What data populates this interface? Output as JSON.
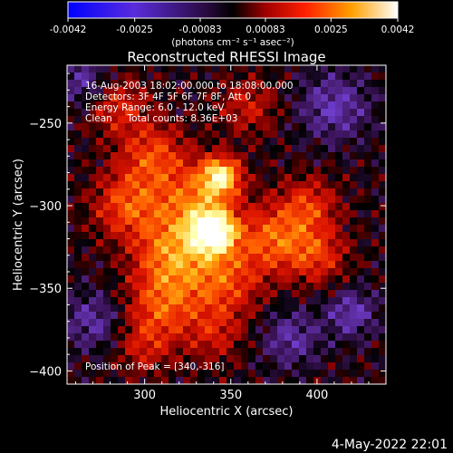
{
  "chart_data": {
    "type": "heatmap",
    "title": "Reconstructed RHESSI Image",
    "xlabel": "Heliocentric X (arcsec)",
    "ylabel": "Heliocentric Y (arcsec)",
    "xlim": [
      255,
      440
    ],
    "ylim": [
      -408,
      -215
    ],
    "x_ticks": [
      300,
      350,
      400
    ],
    "y_ticks": [
      -250,
      -300,
      -350,
      -400
    ],
    "colorbar": {
      "range": [
        -0.0042,
        0.0042
      ],
      "ticks": [
        "-0.0042",
        "-0.0025",
        "-0.00083",
        "0.00083",
        "0.0025",
        "0.0042"
      ],
      "units_label": "(photons cm⁻² s⁻¹ asec⁻²)"
    },
    "annotations": [
      "16-Aug-2003 18:02:00.000 to 18:08:00.000",
      "Detectors: 3F 4F 5F 6F 7F 8F, Att 0",
      "Energy Range: 6.0 - 12.0 keV",
      "Clean     Total counts: 8.36E+03"
    ],
    "peak_label": "Position of Peak = [340,-316]",
    "peak_position": [
      340,
      -316
    ],
    "features": [
      {
        "x": 340,
        "y": -316,
        "sigma": 9,
        "amp": 1.0
      },
      {
        "x": 344,
        "y": -282,
        "sigma": 8,
        "amp": 0.85
      },
      {
        "x": 330,
        "y": -300,
        "sigma": 16,
        "amp": 0.55
      },
      {
        "x": 305,
        "y": -270,
        "sigma": 14,
        "amp": 0.45
      },
      {
        "x": 290,
        "y": -300,
        "sigma": 14,
        "amp": 0.48
      },
      {
        "x": 315,
        "y": -330,
        "sigma": 15,
        "amp": 0.55
      },
      {
        "x": 310,
        "y": -360,
        "sigma": 14,
        "amp": 0.45
      },
      {
        "x": 345,
        "y": -345,
        "sigma": 16,
        "amp": 0.48
      },
      {
        "x": 375,
        "y": -320,
        "sigma": 14,
        "amp": 0.5
      },
      {
        "x": 395,
        "y": -300,
        "sigma": 12,
        "amp": 0.4
      },
      {
        "x": 400,
        "y": -330,
        "sigma": 12,
        "amp": 0.4
      },
      {
        "x": 285,
        "y": -240,
        "sigma": 12,
        "amp": 0.35
      },
      {
        "x": 360,
        "y": -240,
        "sigma": 12,
        "amp": 0.3
      },
      {
        "x": 300,
        "y": -385,
        "sigma": 12,
        "amp": 0.3
      },
      {
        "x": 340,
        "y": -378,
        "sigma": 12,
        "amp": 0.28
      },
      {
        "x": 420,
        "y": -365,
        "sigma": 10,
        "amp": -0.35
      },
      {
        "x": 270,
        "y": -370,
        "sigma": 12,
        "amp": -0.3
      },
      {
        "x": 410,
        "y": -240,
        "sigma": 14,
        "amp": -0.35
      },
      {
        "x": 265,
        "y": -225,
        "sigma": 10,
        "amp": -0.3
      },
      {
        "x": 385,
        "y": -380,
        "sigma": 12,
        "amp": -0.3
      }
    ],
    "grid": false,
    "colormap": "rainbow",
    "background": "#000000"
  },
  "footer_date": "4-May-2022 22:01"
}
